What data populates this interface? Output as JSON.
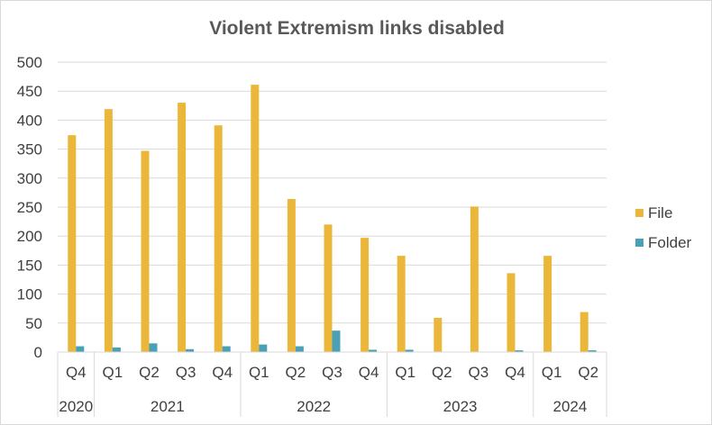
{
  "chart_data": {
    "type": "bar",
    "title": "Violent Extremism links disabled",
    "xlabel": "",
    "ylabel": "",
    "ylim": [
      0,
      500
    ],
    "yticks": [
      0,
      50,
      100,
      150,
      200,
      250,
      300,
      350,
      400,
      450,
      500
    ],
    "grid": true,
    "legend_position": "right",
    "categories": [
      "Q4",
      "Q1",
      "Q2",
      "Q3",
      "Q4",
      "Q1",
      "Q2",
      "Q3",
      "Q4",
      "Q1",
      "Q2",
      "Q3",
      "Q4",
      "Q1",
      "Q2"
    ],
    "year_groups": [
      {
        "label": "2020",
        "count": 1
      },
      {
        "label": "2021",
        "count": 4
      },
      {
        "label": "2022",
        "count": 4
      },
      {
        "label": "2023",
        "count": 4
      },
      {
        "label": "2024",
        "count": 2
      }
    ],
    "series": [
      {
        "name": "File",
        "color": "#ebb73a",
        "values": [
          374,
          419,
          347,
          430,
          391,
          461,
          264,
          220,
          197,
          166,
          59,
          251,
          136,
          166,
          69
        ]
      },
      {
        "name": "Folder",
        "color": "#4aa0b5",
        "values": [
          10,
          8,
          15,
          5,
          10,
          13,
          10,
          37,
          4,
          4,
          0,
          0,
          3,
          0,
          3
        ]
      }
    ]
  }
}
